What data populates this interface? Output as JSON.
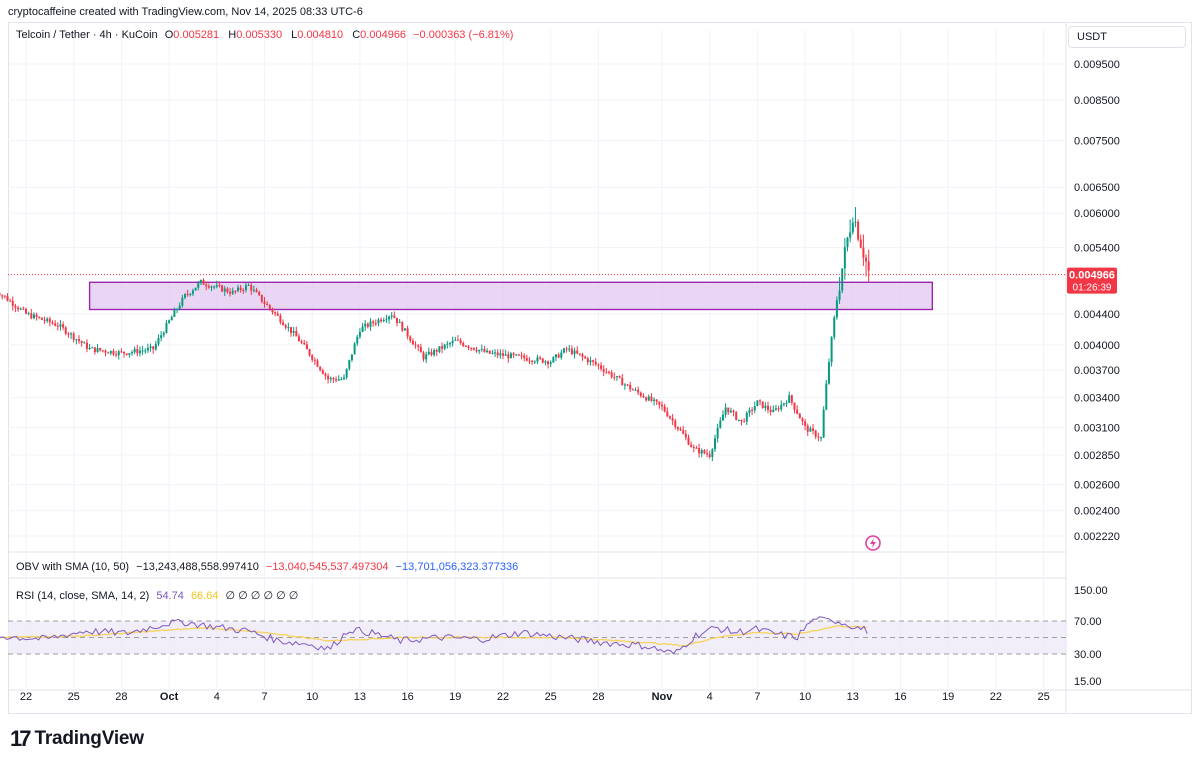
{
  "credit": "cryptocaffeine created with TradingView.com, Nov 14, 2025 08:33 UTC-6",
  "header": {
    "symbol": "Telcoin / Tether · 4h · KuCoin",
    "o_label": "O",
    "o_value": "0.005281",
    "h_label": "H",
    "h_value": "0.005330",
    "l_label": "L",
    "l_value": "0.004810",
    "c_label": "C",
    "c_value": "0.004966",
    "change": "−0.000363 (−6.81%)"
  },
  "currency": "USDT",
  "last_price": {
    "value": "0.004966",
    "countdown": "01:26:39"
  },
  "obv_legend": {
    "title": "OBV with SMA (10, 50)",
    "v1": "−13,243,488,558.997410",
    "v2": "−13,040,545,537.497304",
    "v3": "−13,701,056,323.377336"
  },
  "rsi_legend": {
    "title": "RSI (14, close, SMA, 14, 2)",
    "v1": "54.74",
    "v2": "66.64",
    "rest": "∅ ∅ ∅ ∅ ∅ ∅"
  },
  "colors": {
    "up": "#089981",
    "down": "#f23645",
    "zone_fill": "#e1c8f0",
    "zone_stroke": "#9c27b0",
    "rsi": "#7e57c2",
    "rsi_ma": "#f7d25a"
  },
  "footer": {
    "logo_mark": "17",
    "logo_text": "TradingView"
  },
  "chart_data": [
    {
      "type": "candlestick",
      "title": "Telcoin / Tether · 4h · KuCoin",
      "y_scale": "log",
      "y_ticks": [
        "0.009500",
        "0.008500",
        "0.007500",
        "0.006500",
        "0.006000",
        "0.005400",
        "0.004400",
        "0.004000",
        "0.003700",
        "0.003400",
        "0.003100",
        "0.002850",
        "0.002600",
        "0.002400",
        "0.002220"
      ],
      "x_ticks": [
        "22",
        "25",
        "28",
        "Oct",
        "4",
        "7",
        "10",
        "13",
        "16",
        "19",
        "22",
        "25",
        "28",
        "Nov",
        "4",
        "7",
        "10",
        "13",
        "16",
        "19",
        "22",
        "25"
      ],
      "zone": {
        "from_date": "Sep 26",
        "to_date": "Nov 18",
        "low": 0.00446,
        "high": 0.00485
      },
      "last_price_line": 0.004966,
      "path_anchors": [
        [
          "Sep 20",
          0.00475
        ],
        [
          "Sep 22",
          0.0044
        ],
        [
          "Sep 24",
          0.00425
        ],
        [
          "Sep 26",
          0.00395
        ],
        [
          "Sep 28",
          0.0039
        ],
        [
          "Sep 30",
          0.00395
        ],
        [
          "Oct 1",
          0.0043
        ],
        [
          "Oct 2",
          0.00465
        ],
        [
          "Oct 3",
          0.00485
        ],
        [
          "Oct 5",
          0.0047
        ],
        [
          "Oct 6",
          0.0048
        ],
        [
          "Oct 7",
          0.00455
        ],
        [
          "Oct 9",
          0.0041
        ],
        [
          "Oct 11",
          0.0036
        ],
        [
          "Oct 12",
          0.0036
        ],
        [
          "Oct 13",
          0.0042
        ],
        [
          "Oct 15",
          0.0044
        ],
        [
          "Oct 17",
          0.00385
        ],
        [
          "Oct 19",
          0.00405
        ],
        [
          "Oct 21",
          0.0039
        ],
        [
          "Oct 23",
          0.00385
        ],
        [
          "Oct 25",
          0.0038
        ],
        [
          "Oct 26",
          0.00395
        ],
        [
          "Oct 28",
          0.00375
        ],
        [
          "Oct 30",
          0.0035
        ],
        [
          "Nov 1",
          0.0033
        ],
        [
          "Nov 3",
          0.0029
        ],
        [
          "Nov 4",
          0.00285
        ],
        [
          "Nov 5",
          0.0033
        ],
        [
          "Nov 6",
          0.00315
        ],
        [
          "Nov 7",
          0.00335
        ],
        [
          "Nov 8",
          0.00325
        ],
        [
          "Nov 9",
          0.0034
        ],
        [
          "Nov 10",
          0.0031
        ],
        [
          "Nov 11",
          0.003
        ],
        [
          "Nov 12",
          0.0046
        ],
        [
          "Nov 13",
          0.006
        ],
        [
          "Nov 14",
          0.005
        ]
      ]
    },
    {
      "type": "line",
      "title": "RSI (14, close, SMA, 14, 2)",
      "y_ticks": [
        "150.00",
        "70.00",
        "30.00",
        "15.00"
      ],
      "bands": [
        30,
        70
      ],
      "series": [
        {
          "name": "RSI",
          "anchors": [
            [
              0,
              52
            ],
            [
              0.05,
              48
            ],
            [
              0.09,
              58
            ],
            [
              0.13,
              55
            ],
            [
              0.16,
              64
            ],
            [
              0.18,
              70
            ],
            [
              0.21,
              64
            ],
            [
              0.25,
              58
            ],
            [
              0.28,
              46
            ],
            [
              0.31,
              42
            ],
            [
              0.33,
              36
            ],
            [
              0.35,
              60
            ],
            [
              0.37,
              56
            ],
            [
              0.4,
              46
            ],
            [
              0.44,
              50
            ],
            [
              0.48,
              48
            ],
            [
              0.52,
              56
            ],
            [
              0.56,
              50
            ],
            [
              0.6,
              44
            ],
            [
              0.64,
              40
            ],
            [
              0.67,
              30
            ],
            [
              0.69,
              52
            ],
            [
              0.71,
              62
            ],
            [
              0.73,
              56
            ],
            [
              0.75,
              60
            ],
            [
              0.77,
              54
            ],
            [
              0.79,
              50
            ],
            [
              0.81,
              78
            ],
            [
              0.83,
              70
            ],
            [
              0.85,
              62
            ],
            [
              0.86,
              58
            ]
          ]
        },
        {
          "name": "RSI-based MA",
          "anchors": [
            [
              0,
              50
            ],
            [
              0.09,
              52
            ],
            [
              0.16,
              58
            ],
            [
              0.21,
              62
            ],
            [
              0.28,
              54
            ],
            [
              0.33,
              46
            ],
            [
              0.4,
              50
            ],
            [
              0.48,
              50
            ],
            [
              0.56,
              50
            ],
            [
              0.64,
              44
            ],
            [
              0.68,
              40
            ],
            [
              0.71,
              50
            ],
            [
              0.75,
              56
            ],
            [
              0.79,
              54
            ],
            [
              0.83,
              64
            ],
            [
              0.86,
              62
            ]
          ]
        }
      ]
    }
  ]
}
